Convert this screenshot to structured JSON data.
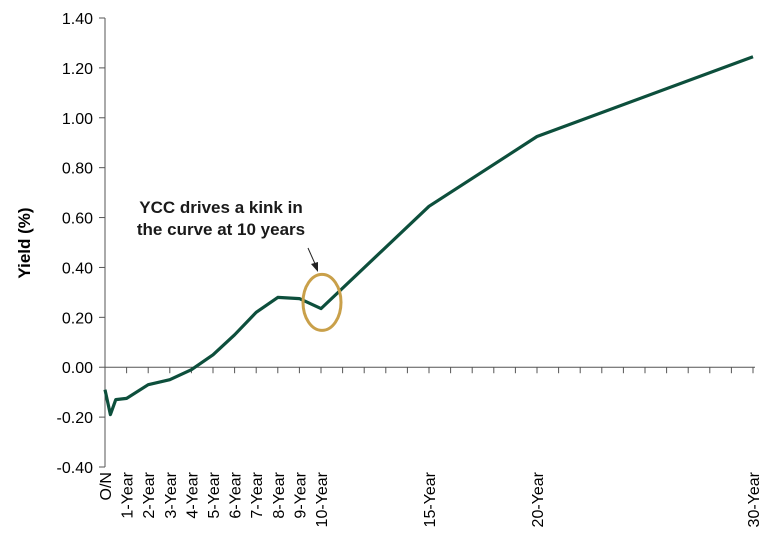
{
  "chart_data": {
    "type": "line",
    "title": "",
    "xlabel": "",
    "ylabel": "Yield (%)",
    "ylim": [
      -0.4,
      1.4
    ],
    "yticks": [
      -0.4,
      -0.2,
      0.0,
      0.2,
      0.4,
      0.6,
      0.8,
      1.0,
      1.2,
      1.4
    ],
    "ytick_labels": [
      "-0.40",
      "-0.20",
      "0.00",
      "0.20",
      "0.40",
      "0.60",
      "0.80",
      "1.00",
      "1.20",
      "1.40"
    ],
    "x_unit": "years",
    "xlim": [
      0,
      30
    ],
    "x_ticks": [
      {
        "label": "O/N",
        "x": 0
      },
      {
        "label": "1-Year",
        "x": 1
      },
      {
        "label": "2-Year",
        "x": 2
      },
      {
        "label": "3-Year",
        "x": 3
      },
      {
        "label": "4-Year",
        "x": 4
      },
      {
        "label": "5-Year",
        "x": 5
      },
      {
        "label": "6-Year",
        "x": 6
      },
      {
        "label": "7-Year",
        "x": 7
      },
      {
        "label": "8-Year",
        "x": 8
      },
      {
        "label": "9-Year",
        "x": 9
      },
      {
        "label": "10-Year",
        "x": 10
      },
      {
        "label": "15-Year",
        "x": 15
      },
      {
        "label": "20-Year",
        "x": 20
      },
      {
        "label": "30-Year",
        "x": 30
      }
    ],
    "series": [
      {
        "color": "#0d4f3c",
        "points": [
          {
            "x": 0,
            "y": -0.09
          },
          {
            "x": 0.25,
            "y": -0.19
          },
          {
            "x": 0.5,
            "y": -0.13
          },
          {
            "x": 1,
            "y": -0.125
          },
          {
            "x": 2,
            "y": -0.07
          },
          {
            "x": 3,
            "y": -0.05
          },
          {
            "x": 4,
            "y": -0.01
          },
          {
            "x": 5,
            "y": 0.05
          },
          {
            "x": 6,
            "y": 0.13
          },
          {
            "x": 7,
            "y": 0.22
          },
          {
            "x": 8,
            "y": 0.28
          },
          {
            "x": 9,
            "y": 0.275
          },
          {
            "x": 10,
            "y": 0.235
          },
          {
            "x": 15,
            "y": 0.645
          },
          {
            "x": 20,
            "y": 0.925
          },
          {
            "x": 30,
            "y": 1.245
          }
        ]
      }
    ],
    "annotation": {
      "lines": [
        "YCC drives a kink in",
        "the curve at 10 years"
      ],
      "target_x": 10,
      "target_y": 0.26,
      "circle_color": "#c9a04a"
    },
    "grid": false,
    "legend": "none"
  }
}
